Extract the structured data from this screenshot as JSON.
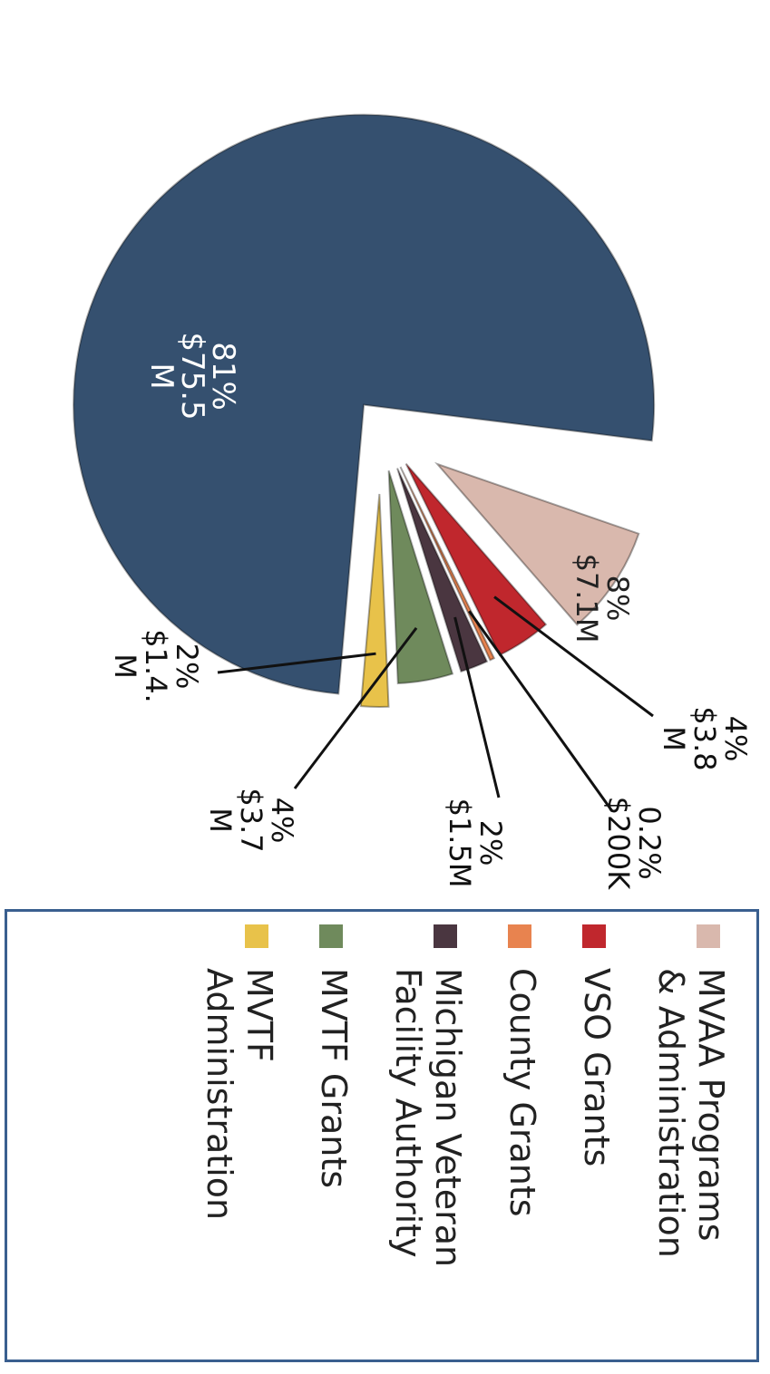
{
  "chart_data": {
    "type": "pie",
    "title": "",
    "slices": [
      {
        "name": "MVAA Programs & Administration",
        "percent": 8,
        "label_pct": "8%",
        "label_amt": "$7.1M",
        "color": "#d9b8ad",
        "exploded": true
      },
      {
        "name": "VSO Grants",
        "percent": 4,
        "label_pct": "4%",
        "label_amt": "$3.8 M",
        "color": "#c0272d",
        "exploded": false
      },
      {
        "name": "County Grants",
        "percent": 0.2,
        "label_pct": "0.2%",
        "label_amt": "$200K",
        "color": "#e8834f",
        "exploded": false
      },
      {
        "name": "Michigan Veteran Facility Authority",
        "percent": 2,
        "label_pct": "2%",
        "label_amt": "$1.5M",
        "color": "#4a3640",
        "exploded": false
      },
      {
        "name": "MVTF Grants",
        "percent": 4,
        "label_pct": "4%",
        "label_amt": "$3.7 M",
        "color": "#6f8a5c",
        "exploded": false
      },
      {
        "name": "MVTF Administration",
        "percent": 2,
        "label_pct": "2%",
        "label_amt": "$1.4. M",
        "color": "#e8c24a",
        "exploded": true
      },
      {
        "name": "",
        "percent": 81,
        "label_pct": "81%",
        "label_amt": "$75.5 M",
        "color": "#35506f",
        "exploded": true
      }
    ],
    "legend": {
      "placement": "bottom",
      "items": [
        {
          "label": "MVAA Programs\n& Administration",
          "color": "#d9b8ad"
        },
        {
          "label": "VSO Grants",
          "color": "#c0272d"
        },
        {
          "label": "County Grants",
          "color": "#e8834f"
        },
        {
          "label": "Michigan Veteran\nFacility Authority",
          "color": "#4a3640"
        },
        {
          "label": "MVTF Grants",
          "color": "#6f8a5c"
        },
        {
          "label": "MVTF\nAdministration",
          "color": "#e8c24a"
        }
      ]
    }
  }
}
